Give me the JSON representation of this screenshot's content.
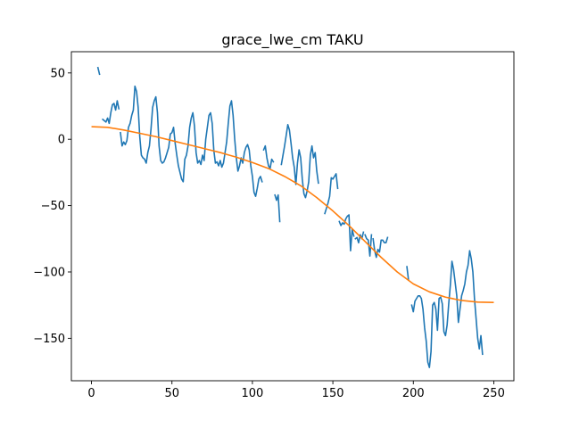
{
  "chart_data": {
    "type": "line",
    "title": "grace_lwe_cm TAKU",
    "xlabel": "",
    "ylabel": "",
    "xlim": [
      -12.5,
      262.5
    ],
    "ylim": [
      -182,
      66
    ],
    "xticks": [
      0,
      50,
      100,
      150,
      200,
      250
    ],
    "yticks": [
      50,
      0,
      -50,
      -100,
      -150
    ],
    "grid": false,
    "colors": {
      "raw": "#1f77b4",
      "trend": "#ff7f0e"
    },
    "series": [
      {
        "segments": [
          [
            [
              4,
              54
            ],
            [
              5,
              49
            ]
          ],
          [
            [
              7,
              15
            ],
            [
              8,
              14
            ],
            [
              9,
              13
            ],
            [
              10,
              16
            ],
            [
              11,
              12
            ],
            [
              12,
              20
            ],
            [
              13,
              26
            ],
            [
              14,
              27
            ],
            [
              15,
              22
            ],
            [
              16,
              29
            ],
            [
              17,
              23
            ]
          ],
          [
            [
              18,
              5
            ],
            [
              19,
              -5
            ],
            [
              20,
              -2
            ],
            [
              21,
              -4
            ],
            [
              22,
              -1
            ],
            [
              23,
              9
            ],
            [
              24,
              12
            ],
            [
              25,
              18
            ],
            [
              26,
              22
            ],
            [
              27,
              40
            ],
            [
              28,
              36
            ],
            [
              29,
              24
            ],
            [
              30,
              2
            ],
            [
              31,
              -12
            ],
            [
              32,
              -14
            ],
            [
              33,
              -15
            ],
            [
              34,
              -18
            ],
            [
              35,
              -10
            ],
            [
              36,
              -5
            ],
            [
              37,
              8
            ],
            [
              38,
              24
            ],
            [
              39,
              29
            ],
            [
              40,
              32
            ],
            [
              41,
              20
            ],
            [
              42,
              -5
            ],
            [
              43,
              -16
            ],
            [
              44,
              -18
            ],
            [
              45,
              -17
            ],
            [
              46,
              -14
            ],
            [
              47,
              -10
            ],
            [
              48,
              -6
            ],
            [
              49,
              4
            ],
            [
              50,
              5
            ],
            [
              51,
              9
            ],
            [
              52,
              -3
            ],
            [
              53,
              -12
            ],
            [
              54,
              -20
            ],
            [
              55,
              -25
            ],
            [
              56,
              -30
            ],
            [
              57,
              -32
            ],
            [
              58,
              -15
            ],
            [
              59,
              -12
            ],
            [
              60,
              -5
            ],
            [
              61,
              9
            ],
            [
              62,
              16
            ],
            [
              63,
              20
            ],
            [
              64,
              10
            ],
            [
              65,
              -10
            ],
            [
              66,
              -18
            ],
            [
              67,
              -16
            ],
            [
              68,
              -19
            ],
            [
              69,
              -12
            ],
            [
              70,
              -16
            ],
            [
              71,
              0
            ],
            [
              72,
              9
            ],
            [
              73,
              18
            ],
            [
              74,
              20
            ],
            [
              75,
              12
            ],
            [
              76,
              -8
            ],
            [
              77,
              -18
            ],
            [
              78,
              -17
            ],
            [
              79,
              -20
            ],
            [
              80,
              -16
            ],
            [
              81,
              -21
            ],
            [
              82,
              -18
            ],
            [
              83,
              -10
            ],
            [
              84,
              -2
            ],
            [
              85,
              12
            ],
            [
              86,
              25
            ],
            [
              87,
              29
            ],
            [
              88,
              18
            ],
            [
              89,
              0
            ],
            [
              90,
              -14
            ],
            [
              91,
              -24
            ],
            [
              92,
              -20
            ],
            [
              93,
              -14
            ],
            [
              94,
              -18
            ],
            [
              95,
              -10
            ],
            [
              96,
              -6
            ],
            [
              97,
              -4
            ],
            [
              98,
              -8
            ],
            [
              99,
              -20
            ],
            [
              100,
              -28
            ],
            [
              101,
              -40
            ],
            [
              102,
              -43
            ],
            [
              103,
              -37
            ],
            [
              104,
              -30
            ],
            [
              105,
              -28
            ],
            [
              106,
              -32
            ]
          ],
          [
            [
              107,
              -8
            ],
            [
              108,
              -5
            ],
            [
              109,
              -14
            ],
            [
              110,
              -20
            ],
            [
              111,
              -22
            ],
            [
              112,
              -15
            ],
            [
              113,
              -17
            ]
          ],
          [
            [
              114,
              -42
            ],
            [
              115,
              -46
            ],
            [
              116,
              -42
            ],
            [
              117,
              -62
            ]
          ],
          [
            [
              118,
              -19
            ],
            [
              119,
              -12
            ],
            [
              120,
              -5
            ],
            [
              121,
              3
            ],
            [
              122,
              11
            ],
            [
              123,
              7
            ],
            [
              124,
              -3
            ],
            [
              125,
              -14
            ],
            [
              126,
              -21
            ],
            [
              127,
              -34
            ],
            [
              128,
              -18
            ],
            [
              129,
              -8
            ],
            [
              130,
              -14
            ],
            [
              131,
              -30
            ],
            [
              132,
              -41
            ],
            [
              133,
              -44
            ],
            [
              134,
              -39
            ],
            [
              135,
              -32
            ],
            [
              136,
              -12
            ],
            [
              137,
              -5
            ],
            [
              138,
              -14
            ],
            [
              139,
              -10
            ],
            [
              140,
              -24
            ],
            [
              141,
              -33
            ]
          ],
          [
            [
              145,
              -56
            ],
            [
              146,
              -52
            ],
            [
              147,
              -48
            ],
            [
              148,
              -43
            ],
            [
              149,
              -29
            ],
            [
              150,
              -30
            ],
            [
              151,
              -28
            ],
            [
              152,
              -26
            ],
            [
              153,
              -37
            ]
          ],
          [
            [
              154,
              -62
            ],
            [
              155,
              -65
            ],
            [
              156,
              -63
            ],
            [
              157,
              -64
            ],
            [
              158,
              -60
            ],
            [
              159,
              -58
            ],
            [
              160,
              -57
            ],
            [
              161,
              -84
            ],
            [
              162,
              -68
            ],
            [
              163,
              -73
            ]
          ],
          [
            [
              164,
              -75
            ],
            [
              165,
              -74
            ],
            [
              166,
              -78
            ],
            [
              167,
              -72
            ],
            [
              168,
              -75
            ],
            [
              169,
              -70
            ]
          ],
          [
            [
              170,
              -72
            ],
            [
              171,
              -75
            ],
            [
              172,
              -76
            ],
            [
              173,
              -88
            ],
            [
              174,
              -72
            ]
          ],
          [
            [
              175,
              -75
            ],
            [
              176,
              -84
            ],
            [
              177,
              -89
            ],
            [
              178,
              -83
            ],
            [
              179,
              -85
            ],
            [
              180,
              -76
            ],
            [
              181,
              -76
            ],
            [
              182,
              -78
            ],
            [
              183,
              -78
            ],
            [
              184,
              -74
            ]
          ],
          [
            [
              196,
              -96
            ],
            [
              197,
              -106
            ]
          ],
          [
            [
              199,
              -125
            ],
            [
              200,
              -130
            ],
            [
              201,
              -122
            ],
            [
              202,
              -120
            ],
            [
              203,
              -118
            ],
            [
              204,
              -118
            ],
            [
              205,
              -120
            ],
            [
              206,
              -128
            ],
            [
              207,
              -142
            ],
            [
              208,
              -152
            ],
            [
              209,
              -168
            ],
            [
              210,
              -172
            ],
            [
              211,
              -160
            ],
            [
              212,
              -125
            ],
            [
              213,
              -123
            ],
            [
              214,
              -128
            ],
            [
              215,
              -144
            ],
            [
              216,
              -120
            ],
            [
              217,
              -119
            ],
            [
              218,
              -124
            ],
            [
              219,
              -145
            ],
            [
              220,
              -148
            ],
            [
              221,
              -140
            ],
            [
              222,
              -124
            ],
            [
              223,
              -110
            ],
            [
              224,
              -92
            ],
            [
              225,
              -98
            ],
            [
              226,
              -108
            ],
            [
              227,
              -118
            ],
            [
              228,
              -138
            ],
            [
              229,
              -128
            ],
            [
              230,
              -118
            ],
            [
              231,
              -114
            ],
            [
              232,
              -109
            ],
            [
              233,
              -100
            ],
            [
              234,
              -95
            ],
            [
              235,
              -84
            ],
            [
              236,
              -90
            ],
            [
              237,
              -100
            ],
            [
              238,
              -120
            ],
            [
              239,
              -135
            ],
            [
              240,
              -150
            ],
            [
              241,
              -158
            ],
            [
              242,
              -148
            ],
            [
              243,
              -162
            ]
          ]
        ]
      },
      {
        "points": [
          [
            0,
            9.5
          ],
          [
            10,
            9
          ],
          [
            20,
            7
          ],
          [
            30,
            4.5
          ],
          [
            40,
            2
          ],
          [
            50,
            -1
          ],
          [
            60,
            -4
          ],
          [
            70,
            -7
          ],
          [
            80,
            -10
          ],
          [
            90,
            -13.5
          ],
          [
            100,
            -17.5
          ],
          [
            110,
            -22
          ],
          [
            120,
            -28
          ],
          [
            130,
            -35
          ],
          [
            140,
            -44
          ],
          [
            150,
            -54
          ],
          [
            160,
            -65
          ],
          [
            170,
            -77
          ],
          [
            180,
            -89
          ],
          [
            190,
            -100
          ],
          [
            200,
            -109
          ],
          [
            210,
            -115
          ],
          [
            220,
            -119
          ],
          [
            230,
            -121.5
          ],
          [
            240,
            -122.7
          ],
          [
            250,
            -123
          ]
        ]
      }
    ]
  }
}
